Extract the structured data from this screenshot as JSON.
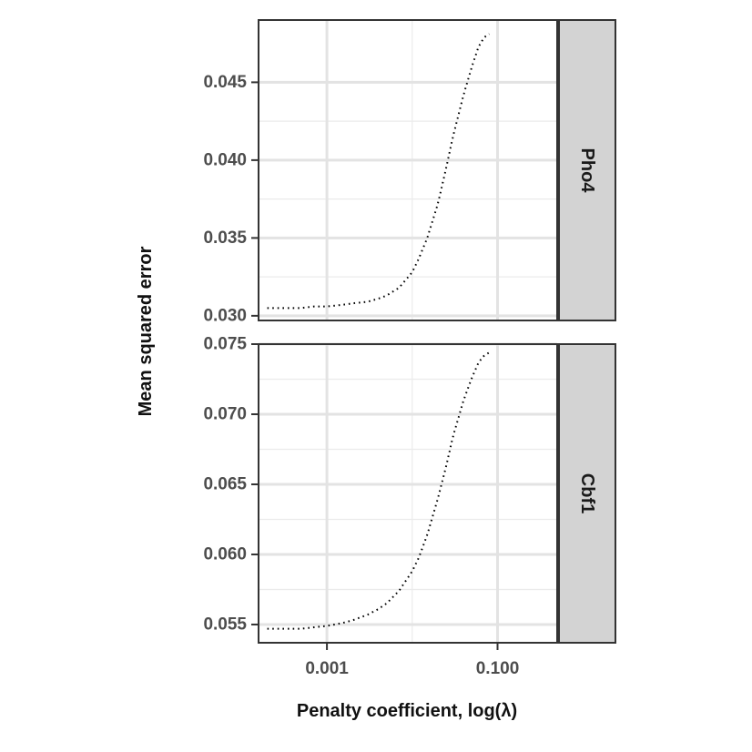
{
  "chart_data": {
    "type": "line",
    "xlabel": "Penalty coefficient, log(λ)",
    "ylabel": "Mean squared error",
    "x_scale": "log10",
    "xlim": [
      0.000158,
      0.5
    ],
    "x_ticks": [
      0.001,
      0.1
    ],
    "x_tick_labels": [
      "0.001",
      "0.100"
    ],
    "x_grid_minor": [
      0.0001,
      0.01,
      1
    ],
    "grid": true,
    "line_style": "dotted",
    "line_color": "#000000",
    "panels": [
      {
        "strip_label": "Pho4",
        "ylim": [
          0.0297,
          0.049
        ],
        "y_ticks": [
          0.03,
          0.035,
          0.04,
          0.045
        ],
        "y_tick_labels": [
          "0.030",
          "0.035",
          "0.040",
          "0.045"
        ],
        "series": [
          {
            "x": [
              0.0002,
              0.0003,
              0.0005,
              0.0007,
              0.001,
              0.0015,
              0.002,
              0.003,
              0.004,
              0.005,
              0.007,
              0.01,
              0.012,
              0.015,
              0.02,
              0.025,
              0.03,
              0.04,
              0.05,
              0.06,
              0.07,
              0.08
            ],
            "y": [
              0.0305,
              0.0305,
              0.0305,
              0.0306,
              0.0306,
              0.0307,
              0.0308,
              0.0309,
              0.0311,
              0.0313,
              0.0318,
              0.0328,
              0.0337,
              0.035,
              0.0372,
              0.0395,
              0.0415,
              0.0442,
              0.046,
              0.0473,
              0.0479,
              0.0481
            ]
          }
        ]
      },
      {
        "strip_label": "Cbf1",
        "ylim": [
          0.0537,
          0.075
        ],
        "y_ticks": [
          0.055,
          0.06,
          0.065,
          0.07,
          0.075
        ],
        "y_tick_labels": [
          "0.055",
          "0.060",
          "0.065",
          "0.070",
          "0.075"
        ],
        "series": [
          {
            "x": [
              0.0002,
              0.0003,
              0.0005,
              0.0007,
              0.001,
              0.0015,
              0.002,
              0.003,
              0.004,
              0.005,
              0.007,
              0.01,
              0.012,
              0.015,
              0.02,
              0.025,
              0.03,
              0.04,
              0.05,
              0.06,
              0.07,
              0.08
            ],
            "y": [
              0.0547,
              0.0547,
              0.0547,
              0.0548,
              0.0549,
              0.0551,
              0.0553,
              0.0557,
              0.0561,
              0.0565,
              0.0574,
              0.0588,
              0.0598,
              0.0614,
              0.064,
              0.0663,
              0.0684,
              0.071,
              0.0726,
              0.0737,
              0.0742,
              0.0744
            ]
          }
        ]
      }
    ]
  }
}
